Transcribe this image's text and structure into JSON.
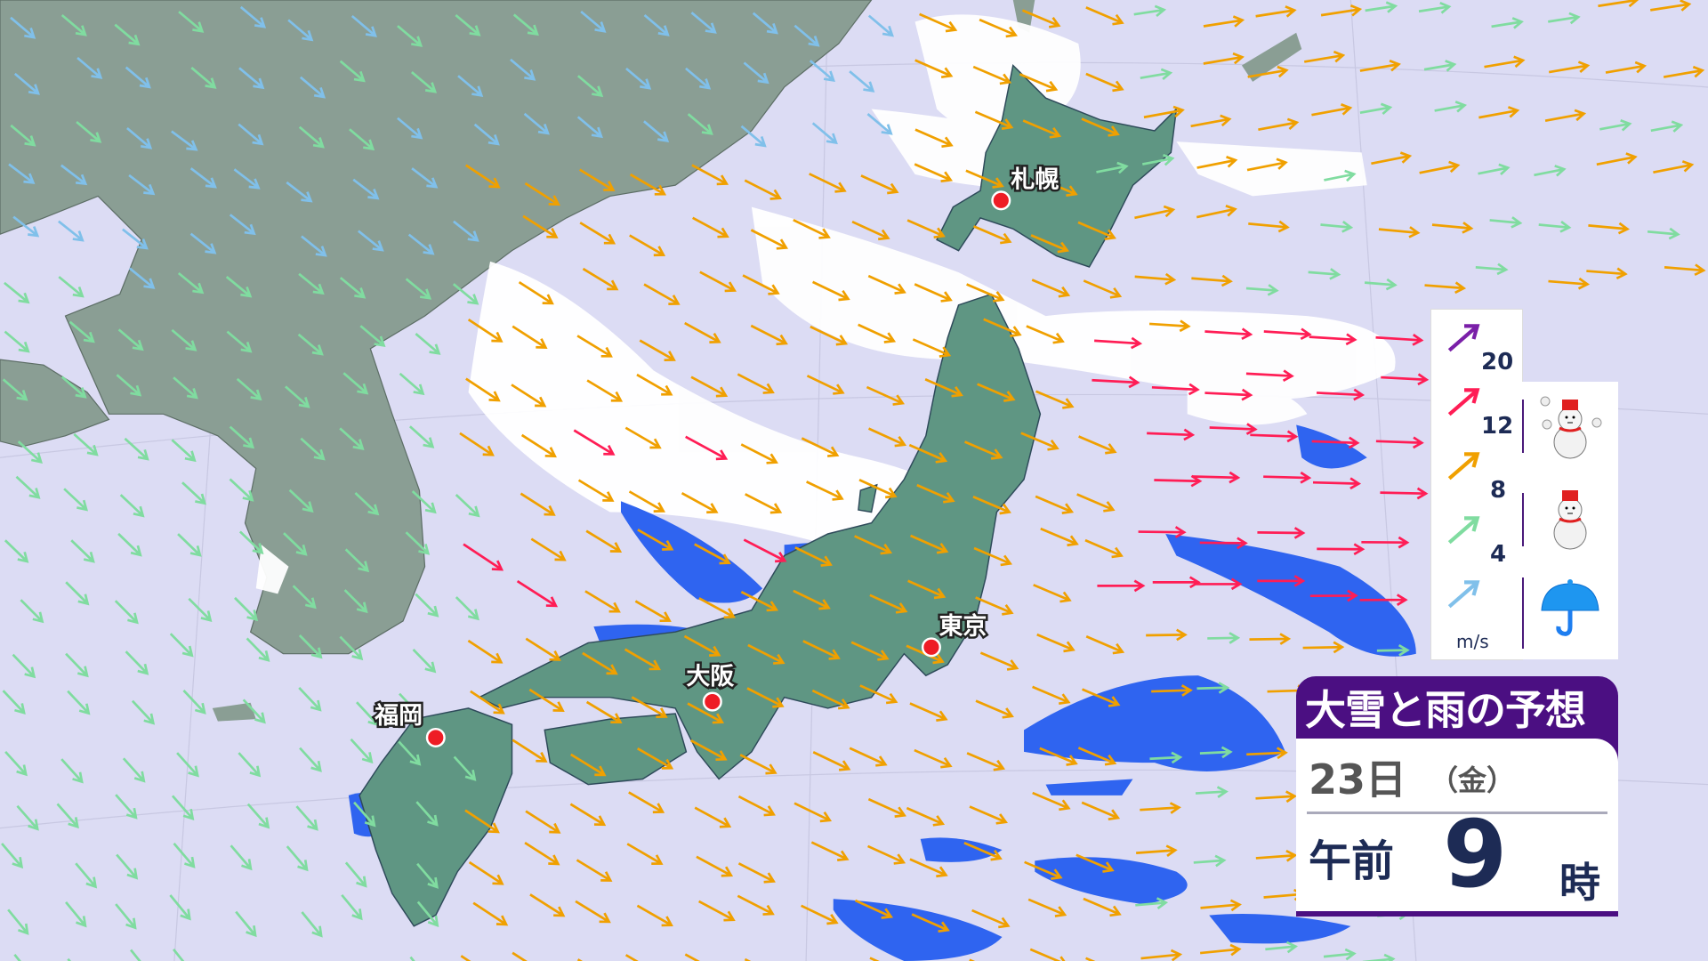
{
  "title": "大雪と雨の予想",
  "time": {
    "date": "23日",
    "weekday": "（金）",
    "ampm": "午前",
    "hour": "9",
    "hour_unit": "時"
  },
  "legend": {
    "speeds": [
      {
        "value": "20",
        "color": "#7a1fa8"
      },
      {
        "value": "12",
        "color": "#ff1d55"
      },
      {
        "value": "8",
        "color": "#f0a000"
      },
      {
        "value": "4",
        "color": "#80dca0"
      },
      {
        "value": "",
        "color": "#80c0ea"
      }
    ],
    "unit": "m/s",
    "precip_icons": [
      "heavy-snow-snowman-icon",
      "snow-snowman-icon",
      "rain-umbrella-icon"
    ]
  },
  "cities": [
    {
      "name": "札幌"
    },
    {
      "name": "東京"
    },
    {
      "name": "大阪"
    },
    {
      "name": "福岡"
    }
  ],
  "colors": {
    "sea": "#dcdcf4",
    "continent": "#8a9e94",
    "japan": "#5f9683",
    "snow": "#ffffff",
    "rain": "#2f64f0",
    "title_bg": "#4b0f82"
  }
}
